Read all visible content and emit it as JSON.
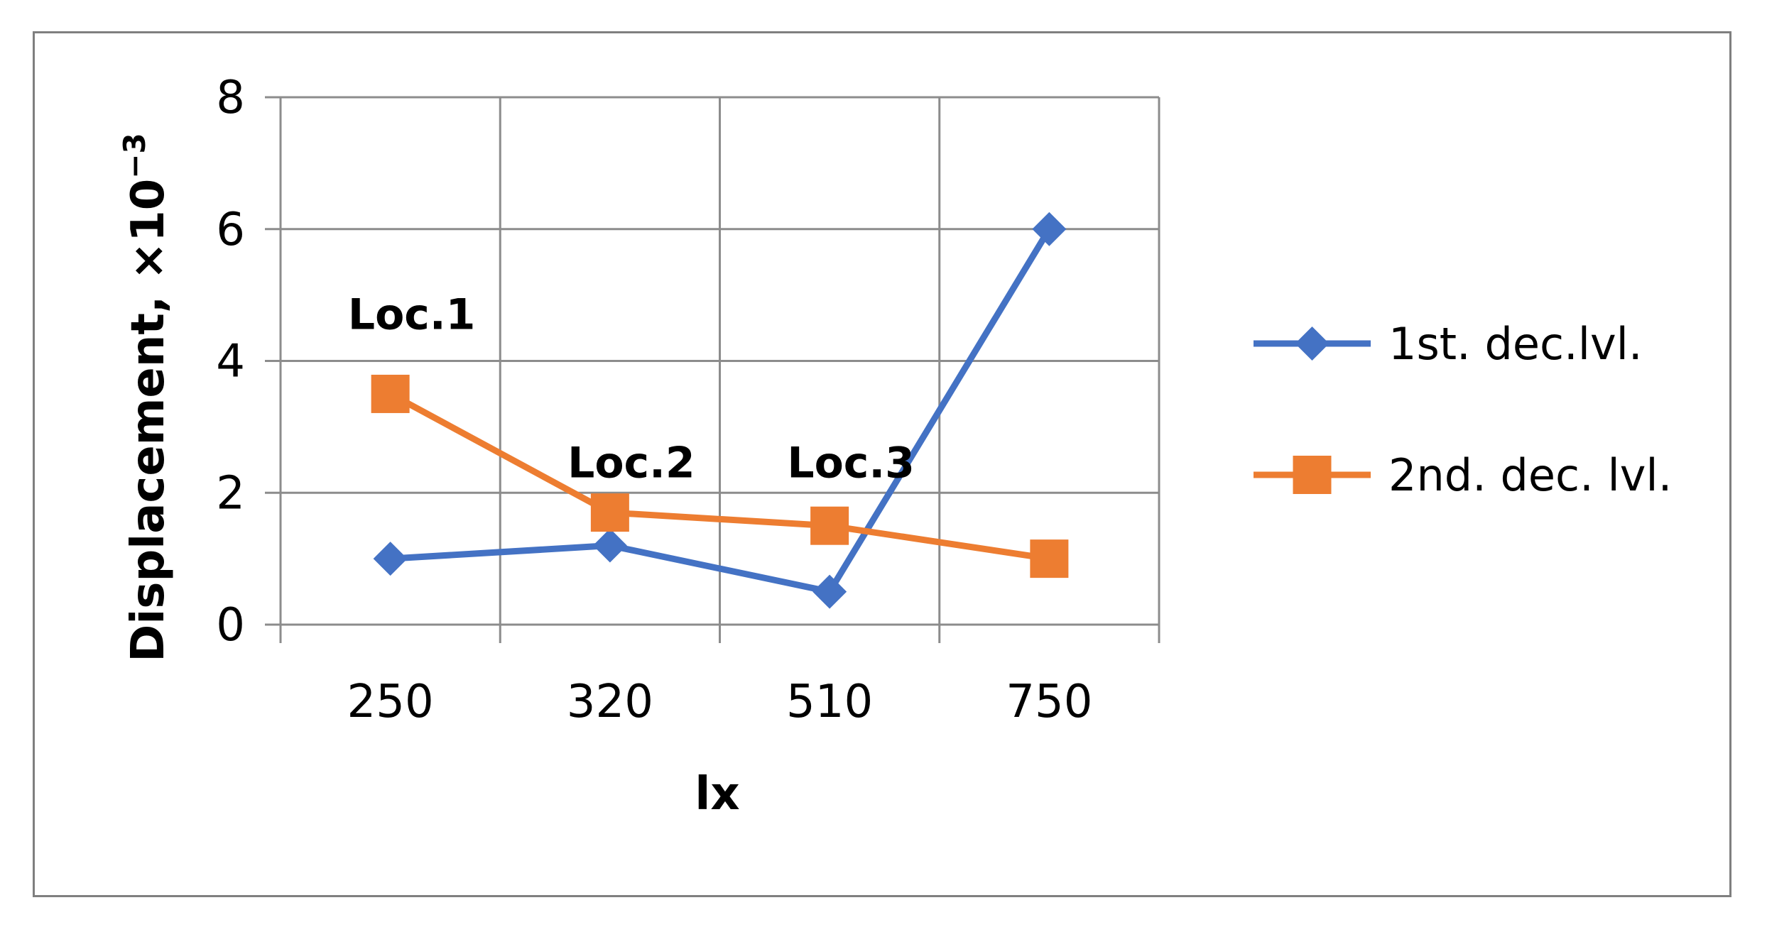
{
  "chart_data": {
    "type": "line",
    "categories": [
      "250",
      "320",
      "510",
      "750"
    ],
    "xlabel": "lx",
    "ylabel": "Displacement, ×10",
    "ylabel_exponent": "−3",
    "ylim": [
      0,
      8
    ],
    "yticks": [
      "0",
      "2",
      "4",
      "6",
      "8"
    ],
    "grid": true,
    "legend_position": "right",
    "series": [
      {
        "name": "1st. dec.lvl.",
        "values": [
          1.0,
          1.2,
          0.5,
          6.0
        ],
        "color": "#4472C4",
        "marker": "diamond"
      },
      {
        "name": "2nd. dec. lvl.",
        "values": [
          3.5,
          1.7,
          1.5,
          1.0
        ],
        "color": "#ED7D31",
        "marker": "square"
      }
    ],
    "annotations": [
      {
        "text": "Loc.1",
        "category": "250",
        "y": 4.7
      },
      {
        "text": "Loc.2",
        "category": "320",
        "y": 2.45
      },
      {
        "text": "Loc.3",
        "category": "510",
        "y": 2.45
      }
    ]
  }
}
